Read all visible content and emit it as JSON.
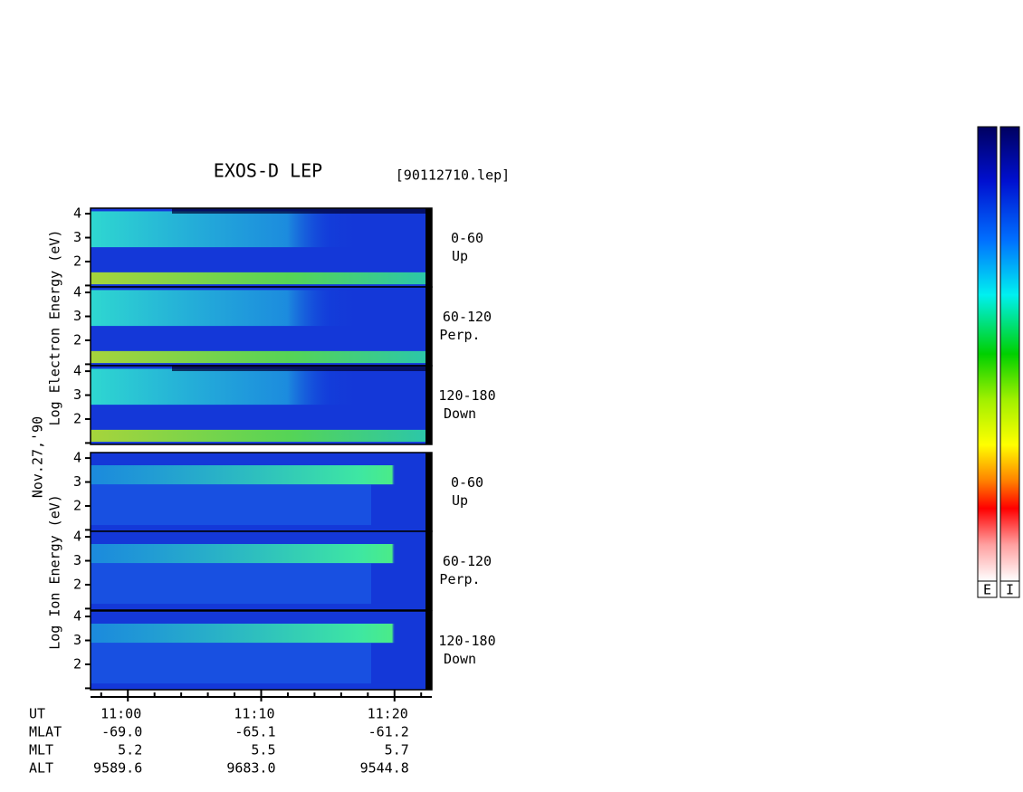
{
  "chart_data": {
    "type": "spectrogram",
    "title": "EXOS-D LEP",
    "file_label": "[90112710.lep]",
    "date_label": "Nov.27,'90",
    "ylabels": [
      "Log  Electron  Energy  (eV)",
      "Log  Ion  Energy  (eV)"
    ],
    "panels": [
      {
        "label": [
          "0-60",
          "Up"
        ]
      },
      {
        "label": [
          "60-120",
          "Perp."
        ]
      },
      {
        "label": [
          "120-180",
          "Down"
        ]
      },
      {
        "label": [
          "0-60",
          "Up"
        ]
      },
      {
        "label": [
          "60-120",
          "Perp."
        ]
      },
      {
        "label": [
          "120-180",
          "Down"
        ]
      }
    ],
    "ylim": [
      0.94,
      4.23
    ],
    "yticks": [
      2,
      3,
      4
    ],
    "minor_yticks": [
      1
    ],
    "xlim": [
      657.2,
      682.8
    ],
    "xticks": [
      {
        "value": 660,
        "label": "11:00"
      },
      {
        "value": 670,
        "label": "11:10"
      },
      {
        "value": 680,
        "label": "11:20"
      }
    ],
    "minor_xticks": [
      658,
      662,
      664,
      666,
      668,
      672,
      674,
      676,
      678,
      682
    ],
    "ephemeris": [
      {
        "name": "UT",
        "values": []
      },
      {
        "name": "MLAT",
        "values": [
          "-69.0",
          "-65.1",
          "-61.2"
        ]
      },
      {
        "name": "MLT",
        "values": [
          "5.2",
          "5.5",
          "5.7"
        ]
      },
      {
        "name": "ALT",
        "values": [
          "9589.6",
          "9683.0",
          "9544.8"
        ]
      }
    ],
    "colorbar_labels": [
      "E",
      "I"
    ]
  }
}
